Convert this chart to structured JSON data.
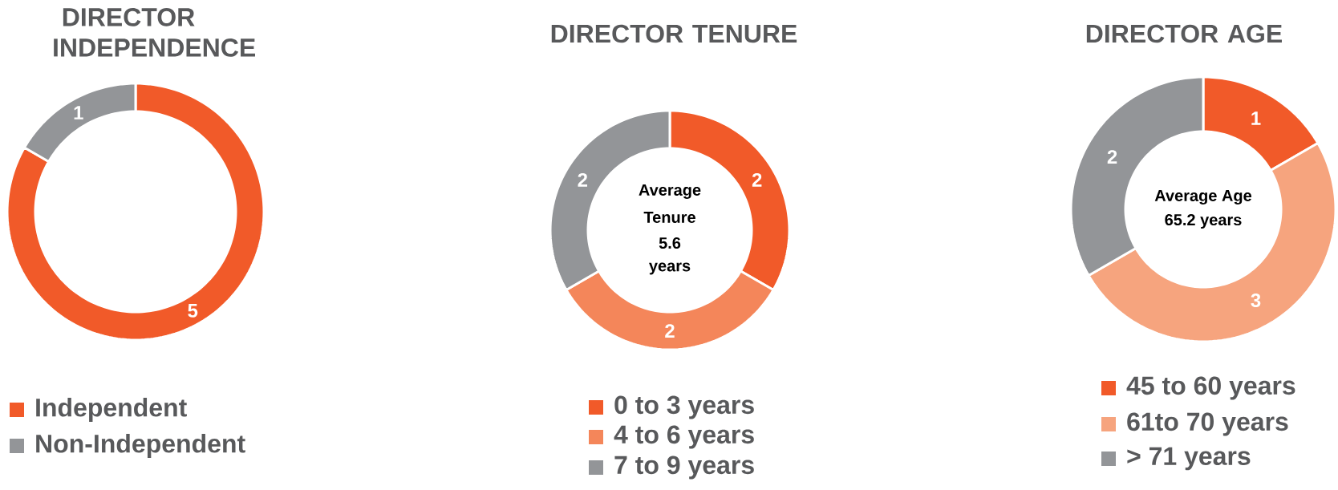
{
  "chart_data": [
    {
      "type": "donut",
      "title": "DIRECTOR INDEPENDENCE",
      "categories": [
        "Independent",
        "Non-Independent"
      ],
      "values": [
        5,
        1
      ],
      "colors": [
        "#f15a29",
        "#939598"
      ],
      "data_labels": true,
      "legend": "bottom"
    },
    {
      "type": "donut",
      "title": "DIRECTOR TENURE",
      "categories": [
        "0 to 3 years",
        "4 to 6 years",
        "7 to 9 years"
      ],
      "values": [
        2,
        2,
        2
      ],
      "colors": [
        "#f15a29",
        "#f4865a",
        "#939598"
      ],
      "data_labels": true,
      "legend": "bottom",
      "annotations": [
        "Average",
        "Tenure",
        "5.6",
        "years"
      ]
    },
    {
      "type": "donut",
      "title": "DIRECTOR AGE",
      "categories": [
        "45 to 60 years",
        "61to 70 years",
        "> 71 years"
      ],
      "values": [
        1,
        3,
        2
      ],
      "colors": [
        "#f15a29",
        "#f6a47e",
        "#939598"
      ],
      "data_labels": true,
      "legend": "bottom",
      "annotations": [
        "Average Age",
        "65.2 years"
      ]
    }
  ]
}
